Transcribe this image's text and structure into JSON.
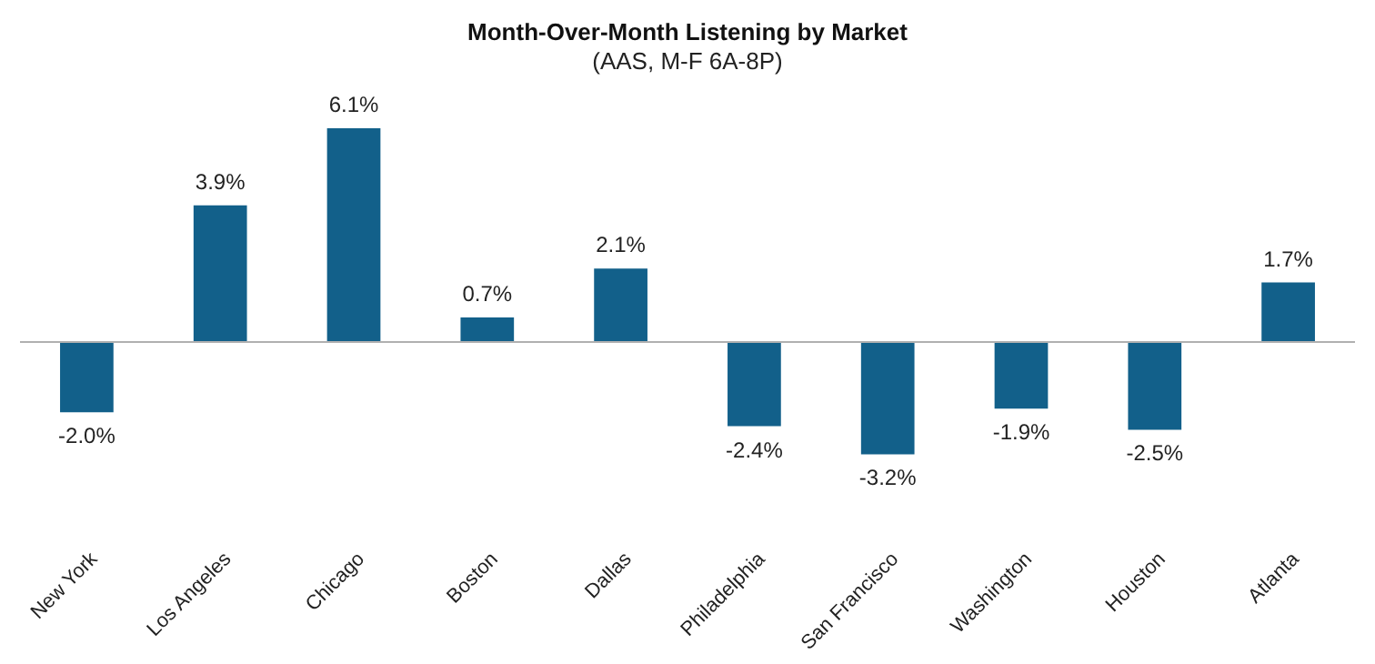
{
  "chart_data": {
    "type": "bar",
    "title": "Month-Over-Month Listening by Market",
    "subtitle": "(AAS, M-F 6A-8P)",
    "categories": [
      "New York",
      "Los Angeles",
      "Chicago",
      "Boston",
      "Dallas",
      "Philadelphia",
      "San Francisco",
      "Washington",
      "Houston",
      "Atlanta"
    ],
    "values": [
      -2.0,
      3.9,
      6.1,
      0.7,
      2.1,
      -2.4,
      -3.2,
      -1.9,
      -2.5,
      1.7
    ],
    "value_labels": [
      "-2.0%",
      "3.9%",
      "6.1%",
      "0.7%",
      "2.1%",
      "-2.4%",
      "-3.2%",
      "-1.9%",
      "-2.5%",
      "1.7%"
    ],
    "color": "#12608a",
    "ref_lines": [
      {
        "axis": "y",
        "value": 0,
        "color": "#b0b0b0"
      }
    ]
  }
}
